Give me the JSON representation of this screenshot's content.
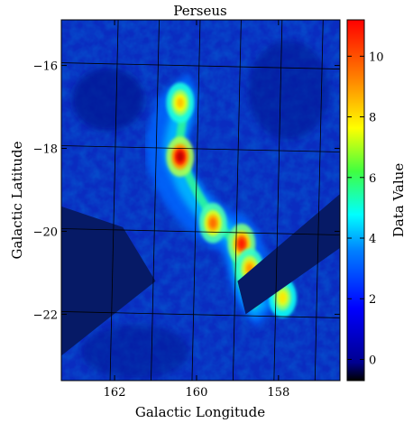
{
  "chart_data": {
    "type": "heatmap",
    "title": "Perseus",
    "xlabel": "Galactic Longitude",
    "ylabel": "Galactic Latitude",
    "colorbar_label": "Data Value",
    "x_ticks": [
      "162",
      "160",
      "158"
    ],
    "y_ticks": [
      "−16",
      "−18",
      "−20",
      "−22"
    ],
    "colorbar_ticks": [
      "0",
      "2",
      "4",
      "6",
      "8",
      "10"
    ],
    "colorbar_range": [
      -0.7,
      11.2
    ],
    "x_range": [
      163.3,
      156.5
    ],
    "y_range": [
      -23.6,
      -14.9
    ],
    "colormap": "jet",
    "grid": true,
    "masked_regions": [
      {
        "name": "left-wedge",
        "corners": [
          [
            163.3,
            -19.4
          ],
          [
            161.8,
            -19.9
          ],
          [
            161.0,
            -21.2
          ],
          [
            163.3,
            -23.0
          ]
        ]
      },
      {
        "name": "right-strip",
        "corners": [
          [
            156.5,
            -19.1
          ],
          [
            156.5,
            -20.4
          ],
          [
            158.8,
            -22.0
          ],
          [
            159.0,
            -21.2
          ]
        ]
      }
    ],
    "emission_features": [
      {
        "name": "peak-main",
        "l": 160.4,
        "b": -18.2,
        "value": 10.5
      },
      {
        "name": "peak-north",
        "l": 160.4,
        "b": -16.9,
        "value": 7.5
      },
      {
        "name": "ridge-mid",
        "l": 159.6,
        "b": -19.8,
        "value": 8.5
      },
      {
        "name": "ridge-south",
        "l": 158.9,
        "b": -20.3,
        "value": 9.5
      },
      {
        "name": "ridge-south2",
        "l": 158.7,
        "b": -20.9,
        "value": 8.0
      },
      {
        "name": "tail",
        "l": 157.9,
        "b": -21.6,
        "value": 7.0
      }
    ],
    "max_value": 11.0,
    "min_value": -0.5
  }
}
